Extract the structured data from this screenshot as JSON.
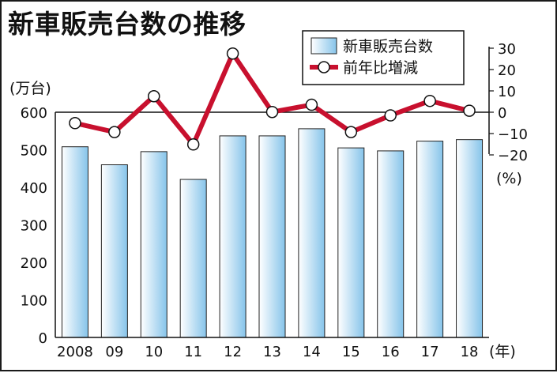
{
  "chart_data": {
    "type": "bar+line",
    "title": "新車販売台数の推移",
    "categories": [
      "2008",
      "09",
      "10",
      "11",
      "12",
      "13",
      "14",
      "15",
      "16",
      "17",
      "18"
    ],
    "x_unit": "(年)",
    "series": [
      {
        "name": "新車販売台数",
        "type": "bar",
        "axis": "left",
        "values": [
          508,
          460,
          495,
          421,
          537,
          537,
          556,
          505,
          497,
          523,
          527
        ]
      },
      {
        "name": "前年比増減",
        "type": "line",
        "axis": "right",
        "values": [
          -5.1,
          -9.3,
          7.5,
          -15.1,
          27.5,
          0.1,
          3.5,
          -9.3,
          -1.5,
          5.3,
          0.7
        ]
      }
    ],
    "left_axis": {
      "unit": "(万台)",
      "ylim": [
        0,
        600
      ],
      "ticks": [
        "0",
        "100",
        "200",
        "300",
        "400",
        "500",
        "600"
      ]
    },
    "right_axis": {
      "unit": "(%)",
      "ylim": [
        -20,
        30
      ],
      "ticks": [
        "30",
        "20",
        "10",
        "0",
        "−10",
        "−20"
      ]
    },
    "grid": false,
    "legend_position": "top-right",
    "colors": {
      "bar_light": "#ffffff",
      "bar_dark": "#86c4ea",
      "bar_stroke": "#222222",
      "line": "#c8102e",
      "marker_fill": "#ffffff"
    }
  }
}
